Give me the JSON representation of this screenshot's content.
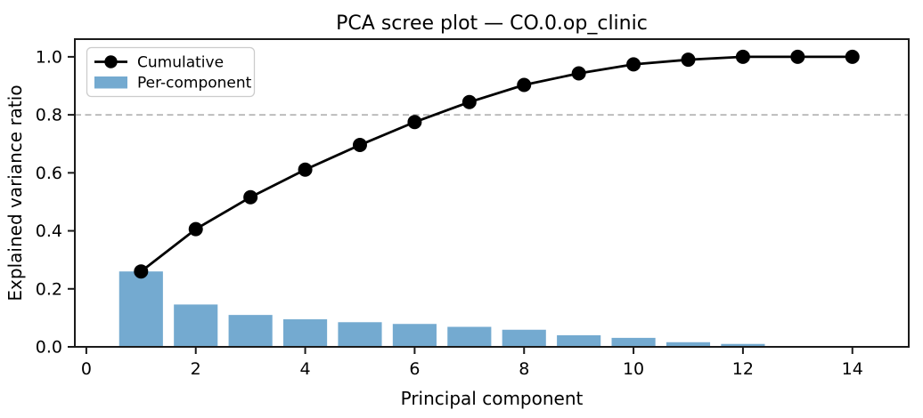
{
  "figure": {
    "background": "#ffffff"
  },
  "chart_data": {
    "type": "bar+line",
    "title": "PCA scree plot — CO.0.op_clinic",
    "xlabel": "Principal component",
    "ylabel": "Explained variance ratio",
    "components": [
      1,
      2,
      3,
      4,
      5,
      6,
      7,
      8,
      9,
      10,
      11,
      12,
      13,
      14
    ],
    "series": [
      {
        "name": "Cumulative",
        "type": "line",
        "color": "#000000",
        "marker": "circle",
        "values": [
          0.26,
          0.406,
          0.516,
          0.611,
          0.696,
          0.775,
          0.844,
          0.903,
          0.943,
          0.974,
          0.99,
          1.0,
          1.0,
          1.0
        ]
      },
      {
        "name": "Per-component",
        "type": "bar",
        "color": "#74aad0",
        "values": [
          0.26,
          0.146,
          0.11,
          0.095,
          0.085,
          0.079,
          0.069,
          0.059,
          0.04,
          0.031,
          0.016,
          0.01,
          0.0,
          0.0
        ]
      }
    ],
    "threshold_line": {
      "y": 0.8,
      "style": "dashed",
      "color": "#aaaaaa"
    },
    "xticks": [
      0,
      2,
      4,
      6,
      8,
      10,
      12,
      14
    ],
    "xtick_labels": [
      "0",
      "2",
      "4",
      "6",
      "8",
      "10",
      "12",
      "14"
    ],
    "yticks": [
      0.0,
      0.2,
      0.4,
      0.6,
      0.8,
      1.0
    ],
    "ytick_labels": [
      "0.0",
      "0.2",
      "0.4",
      "0.6",
      "0.8",
      "1.0"
    ],
    "xlim": [
      -0.21,
      15.03
    ],
    "ylim": [
      0,
      1.061
    ],
    "bar_width": 0.8,
    "grid": false,
    "legend": {
      "position": "upper left",
      "entries": [
        "Cumulative",
        "Per-component"
      ]
    },
    "frame_color": "#1a1a1a"
  }
}
